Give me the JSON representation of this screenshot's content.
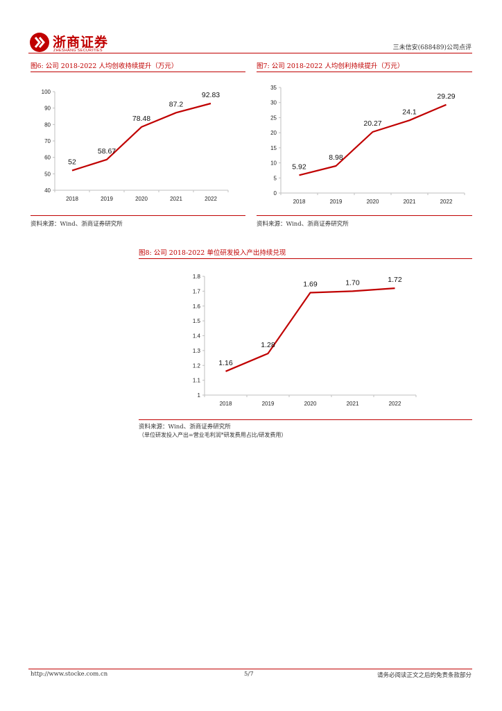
{
  "header": {
    "brand_name": "浙商证券",
    "brand_sub": "ZHESHANG SECURITIES",
    "report_tag": "三未信安(688489)公司点评"
  },
  "figures": {
    "fig6": {
      "title": "图6:  公司 2018-2022 人均创收持续提升（万元）",
      "source": "资料来源：Wind、浙商证券研究所"
    },
    "fig7": {
      "title": "图7:  公司 2018-2022 人均创利持续提升（万元）",
      "source": "资料来源：Wind、浙商证券研究所"
    },
    "fig8": {
      "title": "图8:  公司 2018-2022 单位研发投入产出持续兑现",
      "source": "资料来源：Wind、浙商证券研究所",
      "note": "（单位研发投入产出=营业毛利润*研发费用占比/研发费用）"
    }
  },
  "chart_data": [
    {
      "type": "line",
      "id": "fig6",
      "categories": [
        "2018",
        "2019",
        "2020",
        "2021",
        "2022"
      ],
      "values": [
        52,
        58.67,
        78.48,
        87.2,
        92.83
      ],
      "labels": [
        "52",
        "58.67",
        "78.48",
        "87.2",
        "92.83"
      ],
      "ylim": [
        40,
        100
      ],
      "yticks": [
        40,
        50,
        60,
        70,
        80,
        90,
        100
      ],
      "ytick_labels": [
        "40",
        "50",
        "60",
        "70",
        "80",
        "90",
        "100"
      ],
      "color": "#c00000"
    },
    {
      "type": "line",
      "id": "fig7",
      "categories": [
        "2018",
        "2019",
        "2020",
        "2021",
        "2022"
      ],
      "values": [
        5.92,
        8.98,
        20.27,
        24.1,
        29.29
      ],
      "labels": [
        "5.92",
        "8.98",
        "20.27",
        "24.1",
        "29.29"
      ],
      "ylim": [
        0,
        35
      ],
      "yticks": [
        0,
        5,
        10,
        15,
        20,
        25,
        30,
        35
      ],
      "ytick_labels": [
        "0",
        "5",
        "10",
        "15",
        "20",
        "25",
        "30",
        "35"
      ],
      "color": "#c00000"
    },
    {
      "type": "line",
      "id": "fig8",
      "categories": [
        "2018",
        "2019",
        "2020",
        "2021",
        "2022"
      ],
      "values": [
        1.16,
        1.28,
        1.69,
        1.7,
        1.72
      ],
      "labels": [
        "1.16",
        "1.28",
        "1.69",
        "1.70",
        "1.72"
      ],
      "ylim": [
        1,
        1.8
      ],
      "yticks": [
        1,
        1.1,
        1.2,
        1.3,
        1.4,
        1.5,
        1.6,
        1.7,
        1.8
      ],
      "ytick_labels": [
        "1",
        "1.1",
        "1.2",
        "1.3",
        "1.4",
        "1.5",
        "1.6",
        "1.7",
        "1.8"
      ],
      "color": "#c00000"
    }
  ],
  "footer": {
    "url": "http://www.stocke.com.cn",
    "page": "5/7",
    "disclaimer": "请务必阅读正文之后的免责条款部分"
  }
}
